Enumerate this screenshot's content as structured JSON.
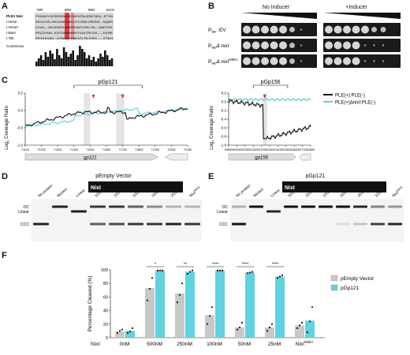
{
  "panels": {
    "A": "A",
    "B": "B",
    "C": "C",
    "D": "D",
    "E": "E",
    "F": "F"
  },
  "panelA": {
    "positions": [
      "75R",
      "85N",
      "95N",
      "101N"
    ],
    "rows": [
      {
        "name": "PLE1 NixI",
        "seq": "PHGAHYHVSRIRDGDDYAYNTNLERKTAIN---ETSN"
      },
      {
        "name": "I-HmuI",
        "seq": "EEGLVVD-HKGDNKDNNYSTLRWLVRKINS---NQMS"
      },
      {
        "name": "I-HmuII",
        "seq": "LVVD---HKGDKRHNNNSNATLRKLSA---SADTKK"
      },
      {
        "name": "I-BasI",
        "seq": "PELDVNH--KDTGRMNNNYVDLTRLGK-----DVRE"
      },
      {
        "name": "I-TslI",
        "seq": "PEDHGAH--LRNGGSNEATLRLKRG-----STAH"
      }
    ],
    "consensus_label": "Consensus"
  },
  "panelB": {
    "no_inducer": "No Inducer",
    "inducer": "+Inducer",
    "rows": [
      {
        "label": "P",
        "sub": "tac",
        "rest": "EV"
      },
      {
        "label": "P",
        "sub": "tac",
        "rest": "nixI"
      },
      {
        "label": "P",
        "sub": "tac",
        "rest": "nixI",
        "sup": "N85A"
      }
    ]
  },
  "panelC": {
    "ylabel": "Log",
    "ylabel_sub": "2",
    "ylabel_rest": " Coverage Ratio",
    "left": {
      "bracket": "pGp121",
      "gene": "gp121",
      "ylim": [
        -1,
        0.5
      ],
      "yticks": [
        "0.5",
        "0.0",
        "-0.5",
        "-1.0"
      ],
      "xticks": [
        "71100",
        "71200",
        "71300",
        "71400",
        "71500",
        "71600",
        "71700",
        "71800",
        "71900",
        "72000",
        "72100"
      ]
    },
    "right": {
      "bracket": "pGp156",
      "gene": "gp156",
      "ylim": [
        -1,
        0.2
      ],
      "yticks": [
        "0.2",
        "0.0",
        "-0.2",
        "-0.4",
        "-0.6",
        "-0.8",
        "-1.0"
      ],
      "xticks": [
        "90800",
        "90900",
        "91000",
        "91100",
        "91200",
        "91300",
        "91400",
        "91500",
        "91600",
        "91700",
        "91800"
      ]
    },
    "legend": [
      {
        "label": "PLE(+):PLE(-)",
        "color": "#111111"
      },
      {
        "label": "PLE(+)ΔnixI:PLE(-)",
        "color": "#5fd3e0"
      }
    ]
  },
  "panelD": {
    "title": "pEmpty Vector",
    "lanes": [
      "No protein",
      "Nicked",
      "Linear",
      "500nM",
      "250nM",
      "100nM",
      "50nM",
      "25nM",
      "NixI"
    ],
    "mutant_sup": "N85A",
    "bar_label": "NixI",
    "bands": [
      "OC",
      "Linear",
      "CCC"
    ]
  },
  "panelE": {
    "title": "pGp121",
    "lanes": [
      "No protein",
      "Nicked",
      "Linear",
      "500nM",
      "250nM",
      "100nM",
      "50nM",
      "25nM",
      "10nM",
      "NixI"
    ],
    "mutant_sup": "N85A",
    "bar_label": "NixI",
    "bands": [
      "OC",
      "Linear",
      "CCC"
    ]
  },
  "chart_data": {
    "type": "bar",
    "ylabel": "Percentage Cleaved (%)",
    "ylim": [
      0,
      100
    ],
    "yticks": [
      "0",
      "20",
      "40",
      "60",
      "80",
      "100"
    ],
    "xprefix": "NixI:",
    "categories": [
      "0nM",
      "500nM",
      "250nM",
      "100nM",
      "50nM",
      "25nM",
      "NixI"
    ],
    "last_sup": "N85A",
    "series": [
      {
        "name": "pEmpty Vector",
        "color": "#c8c8c8",
        "values": [
          9,
          73,
          65,
          33,
          15,
          15,
          18
        ]
      },
      {
        "name": "pGp121",
        "color": "#5fd3e0",
        "values": [
          10,
          99,
          97,
          99,
          96,
          90,
          25
        ]
      }
    ],
    "points": [
      [
        [
          7,
          10,
          12
        ],
        [
          7,
          9,
          14
        ]
      ],
      [
        [
          55,
          72,
          88
        ],
        [
          99,
          99,
          99
        ]
      ],
      [
        [
          52,
          63,
          80
        ],
        [
          94,
          97,
          99
        ]
      ],
      [
        [
          20,
          32,
          45
        ],
        [
          99,
          99,
          99
        ]
      ],
      [
        [
          12,
          15,
          22
        ],
        [
          95,
          96,
          97
        ]
      ],
      [
        [
          10,
          15,
          20
        ],
        [
          88,
          90,
          92
        ]
      ],
      [
        [
          14,
          18,
          22
        ],
        [
          8,
          24,
          45
        ]
      ]
    ],
    "significance": [
      "",
      "*",
      "**",
      "****",
      "****",
      "****",
      ""
    ]
  }
}
